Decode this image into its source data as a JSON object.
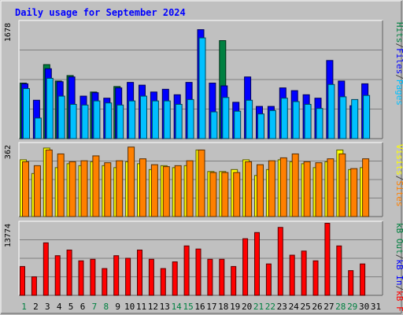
{
  "chart_data": [
    {
      "type": "bar",
      "title": "Daily usage for September 2024",
      "y_max_label": "1678",
      "ylim": [
        0,
        1678
      ],
      "side_labels": [
        {
          "text": "Pages",
          "color": "#00c0ff"
        },
        {
          "text": "/",
          "color": "#404040"
        },
        {
          "text": "Files",
          "color": "#0000ff"
        },
        {
          "text": "/",
          "color": "#404040"
        },
        {
          "text": "Hits",
          "color": "#008040"
        }
      ],
      "categories": [
        "1",
        "2",
        "3",
        "4",
        "5",
        "6",
        "7",
        "8",
        "9",
        "10",
        "11",
        "12",
        "13",
        "14",
        "15",
        "16",
        "17",
        "18",
        "19",
        "20",
        "21",
        "22",
        "23",
        "24",
        "25",
        "26",
        "27",
        "28",
        "29",
        "30",
        "31"
      ],
      "series": [
        {
          "name": "Hits",
          "color": "#008040",
          "values": [
            810,
            0,
            1080,
            840,
            920,
            0,
            680,
            0,
            760,
            0,
            0,
            0,
            0,
            0,
            0,
            0,
            0,
            1430,
            0,
            0,
            0,
            0,
            0,
            0,
            0,
            0,
            0,
            0,
            0,
            0,
            0
          ]
        },
        {
          "name": "Files",
          "color": "#0000ff",
          "values": [
            800,
            560,
            1020,
            830,
            900,
            620,
            670,
            590,
            740,
            820,
            780,
            680,
            720,
            640,
            820,
            1590,
            810,
            770,
            530,
            900,
            470,
            470,
            740,
            700,
            640,
            590,
            1140,
            840,
            480,
            800,
            0
          ]
        },
        {
          "name": "Pages",
          "color": "#00c0ff",
          "values": [
            730,
            300,
            880,
            620,
            500,
            490,
            550,
            520,
            490,
            550,
            620,
            550,
            550,
            500,
            570,
            1470,
            390,
            600,
            400,
            560,
            360,
            410,
            590,
            540,
            500,
            440,
            790,
            610,
            570,
            630,
            0
          ]
        }
      ]
    },
    {
      "type": "bar",
      "y_max_label": "362",
      "ylim": [
        0,
        362
      ],
      "side_labels": [
        {
          "text": "Sites",
          "color": "#ff8000"
        },
        {
          "text": "/",
          "color": "#404040"
        },
        {
          "text": "Visits",
          "color": "#ffff00"
        }
      ],
      "categories": [
        "1",
        "2",
        "3",
        "4",
        "5",
        "6",
        "7",
        "8",
        "9",
        "10",
        "11",
        "12",
        "13",
        "14",
        "15",
        "16",
        "17",
        "18",
        "19",
        "20",
        "21",
        "22",
        "23",
        "24",
        "25",
        "26",
        "27",
        "28",
        "29",
        "30",
        "31"
      ],
      "series": [
        {
          "name": "Visits",
          "color": "#ffff00",
          "values": [
            290,
            220,
            350,
            250,
            270,
            260,
            280,
            260,
            250,
            280,
            270,
            240,
            260,
            250,
            260,
            340,
            230,
            230,
            240,
            290,
            210,
            240,
            290,
            280,
            270,
            250,
            280,
            340,
            240,
            250,
            0
          ]
        },
        {
          "name": "Sites",
          "color": "#ff8000",
          "values": [
            280,
            260,
            340,
            320,
            280,
            285,
            310,
            275,
            285,
            355,
            295,
            265,
            255,
            260,
            285,
            340,
            225,
            225,
            225,
            280,
            265,
            285,
            300,
            320,
            280,
            275,
            295,
            320,
            245,
            295,
            0
          ]
        }
      ]
    },
    {
      "type": "bar",
      "y_max_label": "13774",
      "ylim": [
        0,
        13774
      ],
      "side_labels": [
        {
          "text": "kB F",
          "color": "#ff0000"
        },
        {
          "text": "/",
          "color": "#404040"
        },
        {
          "text": "kB In",
          "color": "#0000ff"
        },
        {
          "text": "/",
          "color": "#404040"
        },
        {
          "text": "kB Out",
          "color": "#008040"
        }
      ],
      "categories": [
        "1",
        "2",
        "3",
        "4",
        "5",
        "6",
        "7",
        "8",
        "9",
        "10",
        "11",
        "12",
        "13",
        "14",
        "15",
        "16",
        "17",
        "18",
        "19",
        "20",
        "21",
        "22",
        "23",
        "24",
        "25",
        "26",
        "27",
        "28",
        "29",
        "30",
        "31"
      ],
      "series": [
        {
          "name": "kB F",
          "color": "#ff0000",
          "values": [
            5600,
            3600,
            10200,
            7700,
            8800,
            6700,
            7000,
            5200,
            7700,
            7200,
            8800,
            7000,
            5200,
            6500,
            9600,
            9000,
            7000,
            7000,
            5600,
            11000,
            12200,
            6100,
            13200,
            7800,
            8600,
            6700,
            14000,
            9600,
            4800,
            6100,
            0
          ]
        }
      ]
    }
  ],
  "x_axis": {
    "labels": [
      {
        "text": "1",
        "color": "#008040"
      },
      {
        "text": "2",
        "color": "#000000"
      },
      {
        "text": "3",
        "color": "#000000"
      },
      {
        "text": "4",
        "color": "#000000"
      },
      {
        "text": "5",
        "color": "#000000"
      },
      {
        "text": "6",
        "color": "#000000"
      },
      {
        "text": "7",
        "color": "#008040"
      },
      {
        "text": "8",
        "color": "#008040"
      },
      {
        "text": "9",
        "color": "#000000"
      },
      {
        "text": "10",
        "color": "#000000"
      },
      {
        "text": "11",
        "color": "#000000"
      },
      {
        "text": "12",
        "color": "#000000"
      },
      {
        "text": "13",
        "color": "#000000"
      },
      {
        "text": "14",
        "color": "#008040"
      },
      {
        "text": "15",
        "color": "#008040"
      },
      {
        "text": "16",
        "color": "#000000"
      },
      {
        "text": "17",
        "color": "#000000"
      },
      {
        "text": "18",
        "color": "#000000"
      },
      {
        "text": "19",
        "color": "#000000"
      },
      {
        "text": "20",
        "color": "#000000"
      },
      {
        "text": "21",
        "color": "#008040"
      },
      {
        "text": "22",
        "color": "#008040"
      },
      {
        "text": "23",
        "color": "#000000"
      },
      {
        "text": "24",
        "color": "#000000"
      },
      {
        "text": "25",
        "color": "#000000"
      },
      {
        "text": "26",
        "color": "#000000"
      },
      {
        "text": "27",
        "color": "#000000"
      },
      {
        "text": "28",
        "color": "#008040"
      },
      {
        "text": "29",
        "color": "#008040"
      },
      {
        "text": "30",
        "color": "#000000"
      },
      {
        "text": "31",
        "color": "#000000"
      }
    ]
  },
  "colors": {
    "background": "#c0c0c0",
    "title": "#0000ff",
    "grid": "#808080"
  }
}
